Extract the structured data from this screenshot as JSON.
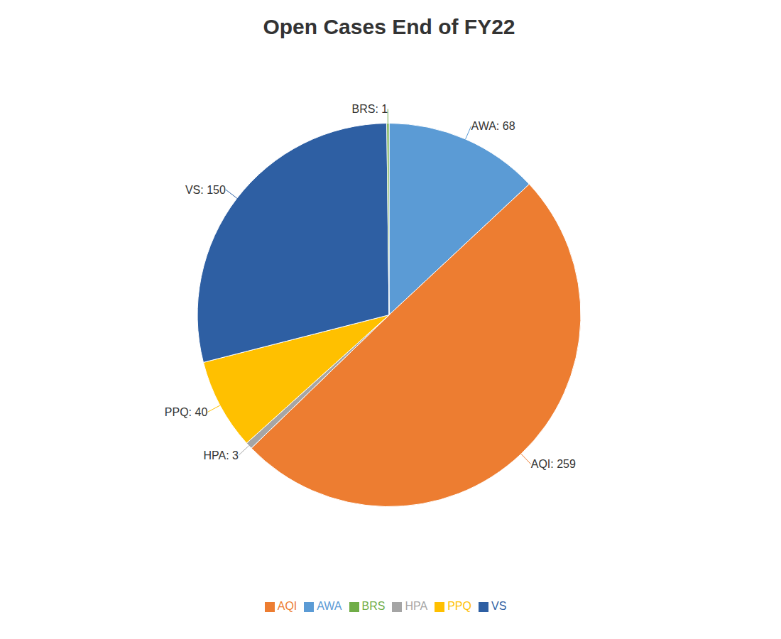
{
  "chart_data": {
    "type": "pie",
    "title": "Open Cases End of FY22",
    "categories": [
      "AWA",
      "AQI",
      "HPA",
      "PPQ",
      "VS",
      "BRS"
    ],
    "values": [
      68,
      259,
      3,
      40,
      150,
      1
    ],
    "value_labels": [
      "AWA: 68",
      "AQI: 259",
      "HPA: 3",
      "PPQ: 40",
      "VS: 150",
      "BRS: 1"
    ],
    "colors": [
      "#5b9bd5",
      "#ed7d31",
      "#a5a5a5",
      "#ffc000",
      "#2e5fa3",
      "#70ad47"
    ],
    "data_labels": true,
    "legend": "bottom"
  }
}
